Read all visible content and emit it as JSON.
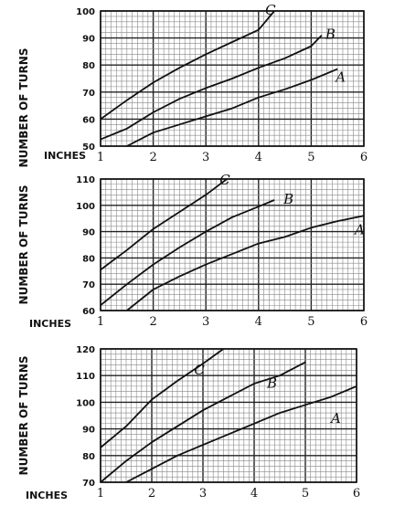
{
  "chart_data": [
    {
      "type": "line",
      "ylabel": "NUMBER OF TURNS",
      "xlabel": "INCHES",
      "xlim": [
        1,
        6
      ],
      "ylim": [
        50,
        100
      ],
      "x_ticks": [
        "1",
        "2",
        "3",
        "4",
        "5",
        "6"
      ],
      "y_ticks": [
        "50",
        "60",
        "70",
        "80",
        "90",
        "100"
      ],
      "grid": true,
      "series": [
        {
          "name": "C",
          "x": [
            1,
            1.5,
            2,
            2.5,
            3,
            3.5,
            4,
            4.3
          ],
          "y": [
            60,
            67,
            73.5,
            79,
            84,
            88.5,
            93,
            100
          ]
        },
        {
          "name": "B",
          "x": [
            1,
            1.5,
            2,
            2.5,
            3,
            3.5,
            4,
            4.5,
            5,
            5.2
          ],
          "y": [
            52.5,
            56.5,
            62.5,
            67.5,
            71.5,
            75,
            79,
            82.5,
            87,
            91
          ]
        },
        {
          "name": "A",
          "x": [
            1.5,
            2,
            2.5,
            3,
            3.5,
            4,
            4.5,
            5,
            5.5
          ],
          "y": [
            50,
            55,
            58,
            61,
            64,
            68,
            71,
            74.5,
            78.5
          ]
        }
      ]
    },
    {
      "type": "line",
      "ylabel": "NUMBER OF TURNS",
      "xlabel": "INCHES",
      "xlim": [
        1,
        6
      ],
      "ylim": [
        60,
        110
      ],
      "x_ticks": [
        "1",
        "2",
        "3",
        "4",
        "5",
        "6"
      ],
      "y_ticks": [
        "60",
        "70",
        "80",
        "90",
        "100",
        "110"
      ],
      "grid": true,
      "series": [
        {
          "name": "C",
          "x": [
            1,
            1.5,
            2,
            2.5,
            3,
            3.4
          ],
          "y": [
            75.5,
            83,
            91,
            97.5,
            104,
            110
          ]
        },
        {
          "name": "B",
          "x": [
            1,
            1.5,
            2,
            2.5,
            3,
            3.5,
            4,
            4.3
          ],
          "y": [
            62,
            70,
            77.5,
            84,
            90,
            95.5,
            99.5,
            102
          ]
        },
        {
          "name": "A",
          "x": [
            1.5,
            2,
            2.5,
            3,
            3.5,
            4,
            4.5,
            5,
            5.5,
            6
          ],
          "y": [
            60,
            68,
            73,
            77.5,
            81.5,
            85.5,
            88,
            91.5,
            94,
            96
          ]
        }
      ]
    },
    {
      "type": "line",
      "ylabel": "NUMBER OF TURNS",
      "xlabel": "INCHES",
      "xlim": [
        1,
        6
      ],
      "ylim": [
        70,
        120
      ],
      "x_ticks": [
        "1",
        "2",
        "3",
        "4",
        "5",
        "6"
      ],
      "y_ticks": [
        "70",
        "80",
        "90",
        "100",
        "110",
        "120"
      ],
      "grid": true,
      "series": [
        {
          "name": "C",
          "x": [
            1,
            1.5,
            2,
            2.5,
            3,
            3.4
          ],
          "y": [
            83,
            91,
            101,
            108,
            114.5,
            120
          ]
        },
        {
          "name": "B",
          "x": [
            1,
            1.5,
            2,
            2.5,
            3,
            3.5,
            4,
            4.5,
            5
          ],
          "y": [
            70,
            78,
            85,
            91,
            97,
            102,
            107,
            110,
            115
          ]
        },
        {
          "name": "A",
          "x": [
            1.5,
            2,
            2.5,
            3,
            3.5,
            4,
            4.5,
            5,
            5.5,
            6
          ],
          "y": [
            70,
            75,
            80,
            84,
            88,
            92,
            96,
            99,
            102,
            106
          ]
        }
      ]
    }
  ]
}
